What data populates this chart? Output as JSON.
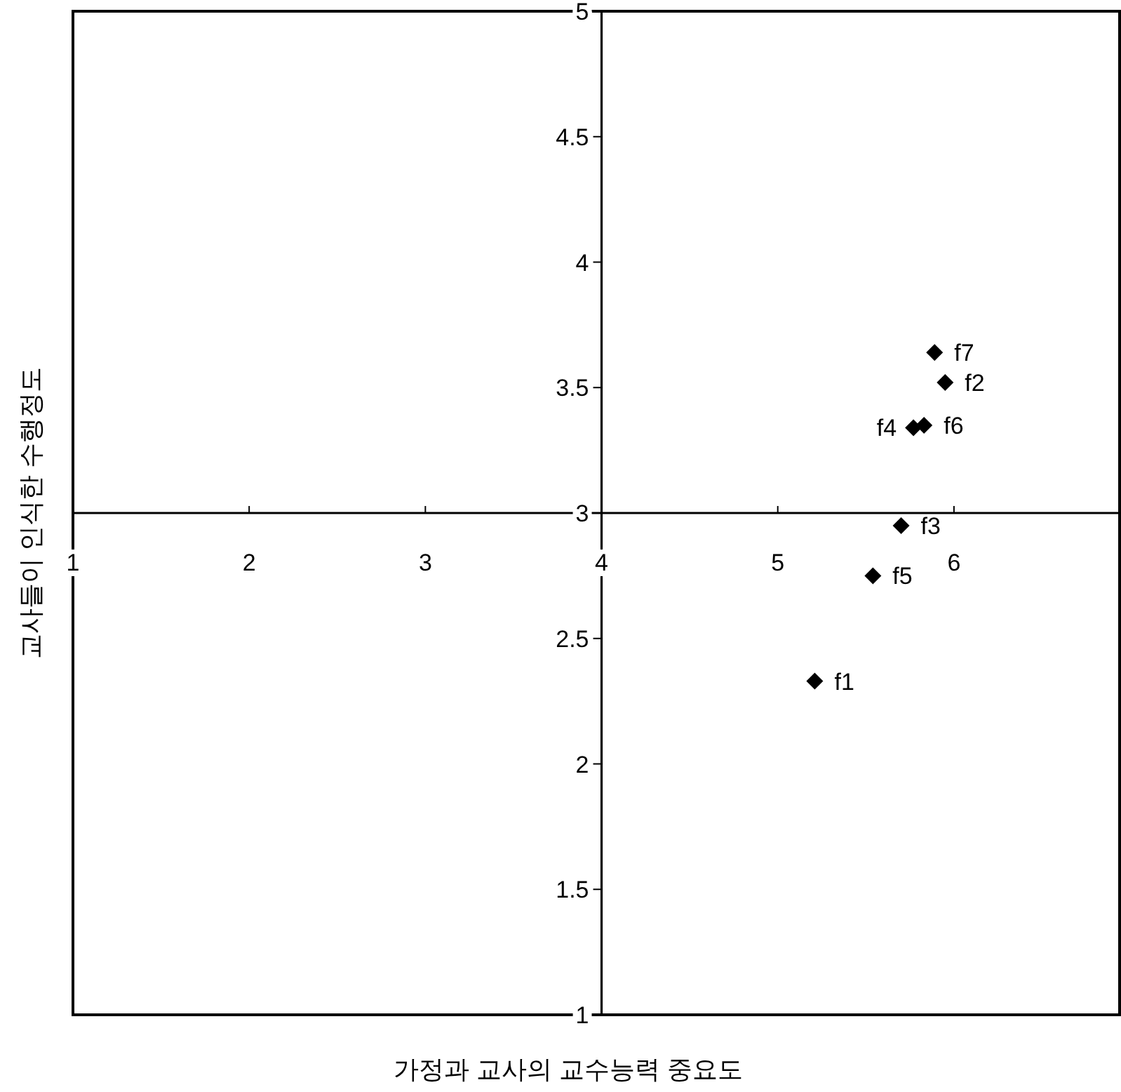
{
  "chart_data": {
    "type": "scatter",
    "xlabel": "가정과 교사의 교수능력 중요도",
    "ylabel": "교사들이 인식한 수행정도",
    "x": [
      5.21,
      5.95,
      5.7,
      5.77,
      5.54,
      5.83,
      5.89
    ],
    "series": [
      {
        "color": "#000000",
        "values": [
          2.33,
          3.52,
          2.95,
          3.34,
          2.75,
          3.35,
          3.64
        ]
      }
    ],
    "annotations": [
      {
        "text": "f1",
        "x": 5.21,
        "y": 2.33
      },
      {
        "text": "f2",
        "x": 5.95,
        "y": 3.52
      },
      {
        "text": "f3",
        "x": 5.7,
        "y": 2.95
      },
      {
        "text": "f4",
        "x": 5.77,
        "y": 3.34
      },
      {
        "text": "f5",
        "x": 5.54,
        "y": 2.75
      },
      {
        "text": "f6",
        "x": 5.83,
        "y": 3.35
      },
      {
        "text": "f7",
        "x": 5.89,
        "y": 3.64
      }
    ],
    "xlim": [
      1,
      6.94
    ],
    "ylim": [
      1,
      5
    ],
    "xticks": [
      1,
      2,
      3,
      4,
      5,
      6
    ],
    "yticks": [
      1,
      1.5,
      2,
      2.5,
      3,
      3.5,
      4,
      4.5,
      5
    ],
    "marker": "diamond",
    "grid": false
  }
}
